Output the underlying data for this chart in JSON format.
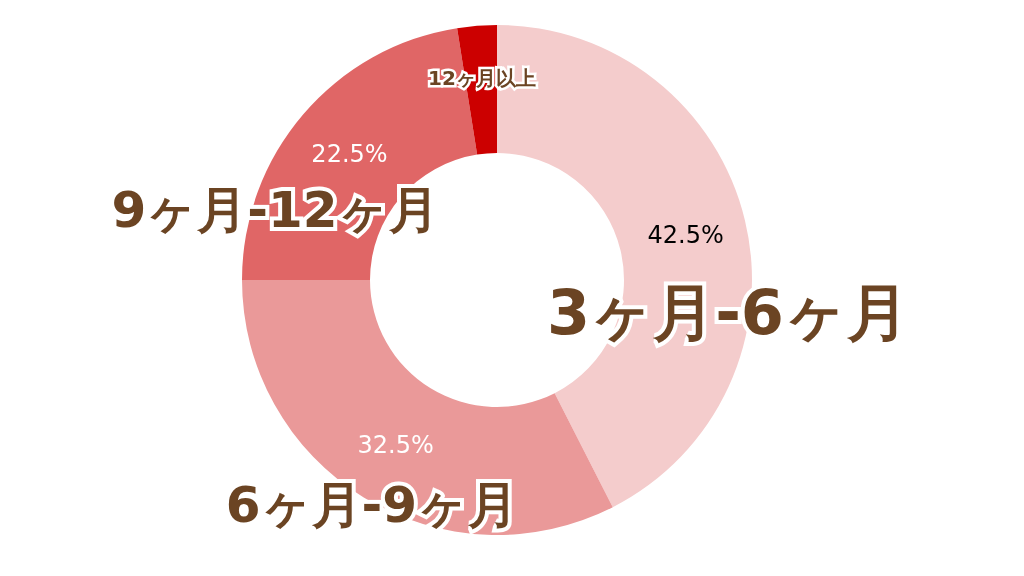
{
  "chart_data": {
    "type": "donut",
    "categories": [
      "3ヶ月-6ヶ月",
      "6ヶ月-9ヶ月",
      "9ヶ月-12ヶ月",
      "12ヶ月以上"
    ],
    "values": [
      42.5,
      32.5,
      22.5,
      2.5
    ],
    "colors": [
      "#f4cccc",
      "#ea9999",
      "#e06666",
      "#cc0000"
    ],
    "value_labels": [
      "42.5%",
      "32.5%",
      "22.5%",
      null
    ]
  }
}
